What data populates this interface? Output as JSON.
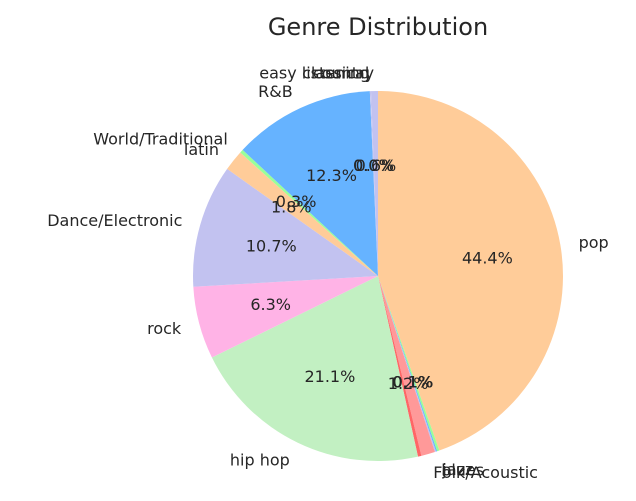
{
  "chart_data": {
    "type": "pie",
    "title": "Genre Distribution",
    "start_angle_deg": 90,
    "direction": "clockwise",
    "slices": [
      {
        "label": "pop",
        "value": 44.4,
        "pct_text": "44.4%",
        "color": "#ffcc99"
      },
      {
        "label": "",
        "value": 0.2,
        "pct_text": "",
        "color": "#99ff99"
      },
      {
        "label": "jazz",
        "value": 0.1,
        "pct_text": "0.1%",
        "color": "#66b3ff"
      },
      {
        "label": "blues",
        "value": 0.1,
        "pct_text": "0.1%",
        "color": "#c2c2f0"
      },
      {
        "label": "Folk/Acoustic",
        "value": 1.2,
        "pct_text": "1.2%",
        "color": "#ff9999"
      },
      {
        "label": "",
        "value": 0.3,
        "pct_text": "",
        "color": "#ff6666"
      },
      {
        "label": "hip hop",
        "value": 21.1,
        "pct_text": "21.1%",
        "color": "#c2f0c2"
      },
      {
        "label": "rock",
        "value": 6.3,
        "pct_text": "6.3%",
        "color": "#ffb3e6"
      },
      {
        "label": "Dance/Electronic",
        "value": 10.7,
        "pct_text": "10.7%",
        "color": "#c2c2f0"
      },
      {
        "label": "latin",
        "value": 1.8,
        "pct_text": "1.8%",
        "color": "#ffcc99"
      },
      {
        "label": "World/Traditional",
        "value": 0.3,
        "pct_text": "0.3%",
        "color": "#99ff99"
      },
      {
        "label": "R&B",
        "value": 12.3,
        "pct_text": "12.3%",
        "color": "#66b3ff"
      },
      {
        "label": "classical",
        "value": 0.05,
        "pct_text": "0.0%",
        "color": "#c2c2f0"
      },
      {
        "label": "easy listening",
        "value": 0.05,
        "pct_text": "0.0%",
        "color": "#c2c2f0"
      },
      {
        "label": "country",
        "value": 0.6,
        "pct_text": "0.6%",
        "color": "#c2c2f0"
      }
    ]
  }
}
